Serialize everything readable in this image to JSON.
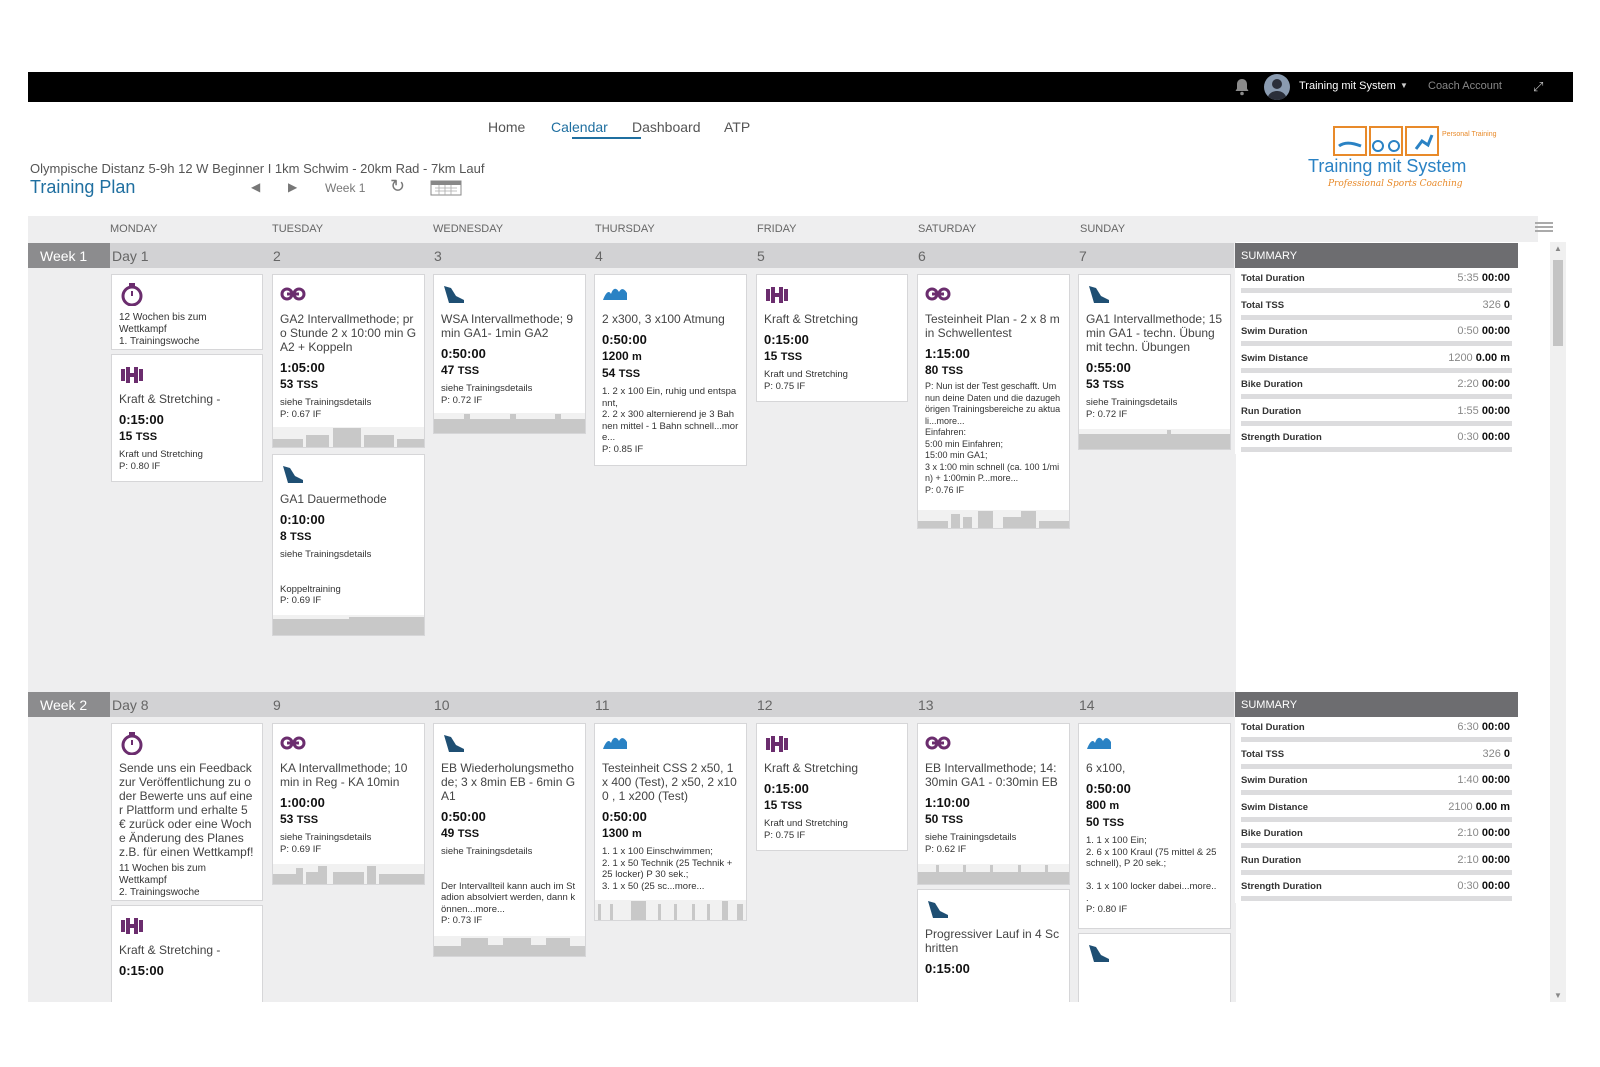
{
  "topbar": {
    "user_name": "Training mit System",
    "coach_label": "Coach Account"
  },
  "nav": [
    {
      "label": "Home"
    },
    {
      "label": "Calendar"
    },
    {
      "label": "Dashboard"
    },
    {
      "label": "ATP"
    }
  ],
  "plan": {
    "subtitle": "Olympische Distanz 5-9h 12 W Beginner I 1km Schwim - 20km Rad - 7km Lauf",
    "title": "Training Plan",
    "week_label": "Week 1"
  },
  "logo": {
    "text": "Training mit System",
    "tagline": "Professional Sports Coaching",
    "badge": "Personal Training"
  },
  "day_headers": [
    "MONDAY",
    "TUESDAY",
    "WEDNESDAY",
    "THURSDAY",
    "FRIDAY",
    "SATURDAY",
    "SUNDAY"
  ],
  "weeks": [
    {
      "label": "Week 1",
      "days": [
        "Day 1",
        "2",
        "3",
        "4",
        "5",
        "6",
        "7"
      ],
      "summary": {
        "header": "SUMMARY",
        "rows": [
          {
            "label": "Total Duration",
            "planned": "5:35",
            "actual": "00:00"
          },
          {
            "label": "Total TSS",
            "planned": "326",
            "actual": "0"
          },
          {
            "label": "Swim Duration",
            "planned": "0:50",
            "actual": "00:00"
          },
          {
            "label": "Swim Distance",
            "planned": "1200",
            "actual": "0.00 m"
          },
          {
            "label": "Bike Duration",
            "planned": "2:20",
            "actual": "00:00"
          },
          {
            "label": "Run Duration",
            "planned": "1:55",
            "actual": "00:00"
          },
          {
            "label": "Strength Duration",
            "planned": "0:30",
            "actual": "00:00"
          }
        ]
      }
    },
    {
      "label": "Week 2",
      "days": [
        "Day 8",
        "9",
        "10",
        "11",
        "12",
        "13",
        "14"
      ],
      "summary": {
        "header": "SUMMARY",
        "rows": [
          {
            "label": "Total Duration",
            "planned": "6:30",
            "actual": "00:00"
          },
          {
            "label": "Total TSS",
            "planned": "326",
            "actual": "0"
          },
          {
            "label": "Swim Duration",
            "planned": "1:40",
            "actual": "00:00"
          },
          {
            "label": "Swim Distance",
            "planned": "2100",
            "actual": "0.00 m"
          },
          {
            "label": "Bike Duration",
            "planned": "2:10",
            "actual": "00:00"
          },
          {
            "label": "Run Duration",
            "planned": "2:10",
            "actual": "00:00"
          },
          {
            "label": "Strength Duration",
            "planned": "0:30",
            "actual": "00:00"
          }
        ]
      }
    }
  ],
  "workouts": {
    "w1_mon_event": {
      "icon": "stopwatch-icon",
      "title": "12 Wochen bis zum Wettkampf\n1. Trainingswoche"
    },
    "w1_mon_strength": {
      "icon": "dumbbell-icon",
      "title": "Kraft & Stretching -",
      "duration": "0:15:00",
      "tss": "15",
      "tss_unit": "TSS",
      "note": "Kraft und Stretching\nP: 0.80 IF"
    },
    "w1_tue_bike": {
      "icon": "bike-icon",
      "title": "GA2 Intervallmethode; pro Stunde 2 x 10:00 min GA2 + Koppeln",
      "duration": "1:05:00",
      "tss": "53",
      "tss_unit": "TSS",
      "note": "siehe Trainingsdetails\nP: 0.67 IF"
    },
    "w1_tue_run": {
      "icon": "run-shoe-icon",
      "title": "GA1 Dauermethode",
      "duration": "0:10:00",
      "tss": "8",
      "tss_unit": "TSS",
      "note": "siehe Trainingsdetails\n\n\nKoppeltraining\nP: 0.69 IF"
    },
    "w1_wed_run": {
      "icon": "run-shoe-icon",
      "title": "WSA Intervallmethode; 9 min GA1- 1min GA2",
      "duration": "0:50:00",
      "tss": "47",
      "tss_unit": "TSS",
      "note": "siehe Trainingsdetails\nP: 0.72 IF"
    },
    "w1_thu_swim": {
      "icon": "swim-wave-icon",
      "title": "2 x300, 3 x100 Atmung",
      "duration": "0:50:00",
      "distance": "1200",
      "distance_unit": "m",
      "tss": "54",
      "tss_unit": "TSS",
      "note": "1. 2 x 100 Ein, ruhig und entspannt,\n2. 2 x 300 alternierend je 3 Bahnen mittel - 1 Bahn schnell...more...\nP: 0.85 IF"
    },
    "w1_fri_strength": {
      "icon": "dumbbell-icon",
      "title": "Kraft & Stretching",
      "duration": "0:15:00",
      "tss": "15",
      "tss_unit": "TSS",
      "note": "Kraft und Stretching\nP: 0.75 IF"
    },
    "w1_sat_bike": {
      "icon": "bike-icon",
      "title": "Testeinheit Plan - 2 x 8 min Schwellentest",
      "duration": "1:15:00",
      "tss": "80",
      "tss_unit": "TSS",
      "note": "P: Nun ist der Test geschafft. Um nun deine Daten und die dazugehörigen Trainingsbereiche zu aktuali...more...\nEinfahren:\n5:00 min Einfahren;\n15:00 min GA1;\n3 x 1:00 min schnell (ca. 100 1/min) + 1:00min P...more...\nP: 0.76 IF"
    },
    "w1_sun_run": {
      "icon": "run-shoe-icon",
      "title": "GA1 Intervallmethode; 15 min GA1 - techn. Übung mit techn. Übungen",
      "duration": "0:55:00",
      "tss": "53",
      "tss_unit": "TSS",
      "note": "siehe Trainingsdetails\nP: 0.72 IF"
    },
    "w2_mon_event": {
      "icon": "stopwatch-icon",
      "title": "Sende uns ein Feedback zur Veröffentlichung zu oder Bewerte uns auf einer Plattform und erhalte 5 € zurück oder eine Woche Änderung des Planes z.B. für einen Wettkampf!",
      "note": "11 Wochen bis zum Wettkampf\n2. Trainingswoche"
    },
    "w2_mon_strength": {
      "icon": "dumbbell-icon",
      "title": "Kraft & Stretching -",
      "duration": "0:15:00"
    },
    "w2_tue_bike": {
      "icon": "bike-icon",
      "title": "KA Intervallmethode; 10min in Reg - KA 10min",
      "duration": "1:00:00",
      "tss": "53",
      "tss_unit": "TSS",
      "note": "siehe Trainingsdetails\nP: 0.69 IF"
    },
    "w2_wed_run": {
      "icon": "run-shoe-icon",
      "title": "EB Wiederholungsmethode; 3 x 8min EB - 6min GA1",
      "duration": "0:50:00",
      "tss": "49",
      "tss_unit": "TSS",
      "note": "siehe Trainingsdetails\n\n\nDer Intervallteil kann auch im Stadion absolviert werden, dann können...more...\nP: 0.73 IF"
    },
    "w2_thu_swim": {
      "icon": "swim-wave-icon",
      "title": "Testeinheit CSS 2 x50, 1 x 400 (Test), 2 x50, 2 x100 , 1 x200 (Test)",
      "duration": "0:50:00",
      "distance": "1300",
      "distance_unit": "m",
      "note": "1. 1 x 100 Einschwimmen;\n2. 1 x 50 Technik (25 Technik + 25 locker) P 30 sek.;\n3. 1 x 50 (25 sc...more..."
    },
    "w2_fri_strength": {
      "icon": "dumbbell-icon",
      "title": "Kraft & Stretching",
      "duration": "0:15:00",
      "tss": "15",
      "tss_unit": "TSS",
      "note": "Kraft und Stretching\nP: 0.75 IF"
    },
    "w2_sat_bike": {
      "icon": "bike-icon",
      "title": "EB Intervallmethode; 14:30min GA1 - 0:30min EB",
      "duration": "1:10:00",
      "tss": "50",
      "tss_unit": "TSS",
      "note": "siehe Trainingsdetails\nP: 0.62 IF"
    },
    "w2_sat_run": {
      "icon": "run-shoe-icon",
      "title": "Progressiver Lauf in 4 Schritten",
      "duration": "0:15:00"
    },
    "w2_sun_swim": {
      "icon": "swim-wave-icon",
      "title": "6 x100,",
      "duration": "0:50:00",
      "distance": "800",
      "distance_unit": "m",
      "tss": "50",
      "tss_unit": "TSS",
      "note": "1. 1 x 100 Ein;\n2. 6 x 100 Kraul (75 mittel & 25 schnell), P 20 sek.;\n\n3. 1 x 100 locker dabei...more..\n.\nP: 0.80 IF"
    },
    "w2_sun_run": {
      "icon": "run-shoe-icon"
    }
  },
  "colors": {
    "accent": "#1f6fa0",
    "strength": "#6b2d6e",
    "run": "#1f4f73",
    "swim": "#2a82c4",
    "topbar": "#000000",
    "week_label_bg": "#8c8c8e",
    "summary_header_bg": "#6d6d70"
  }
}
